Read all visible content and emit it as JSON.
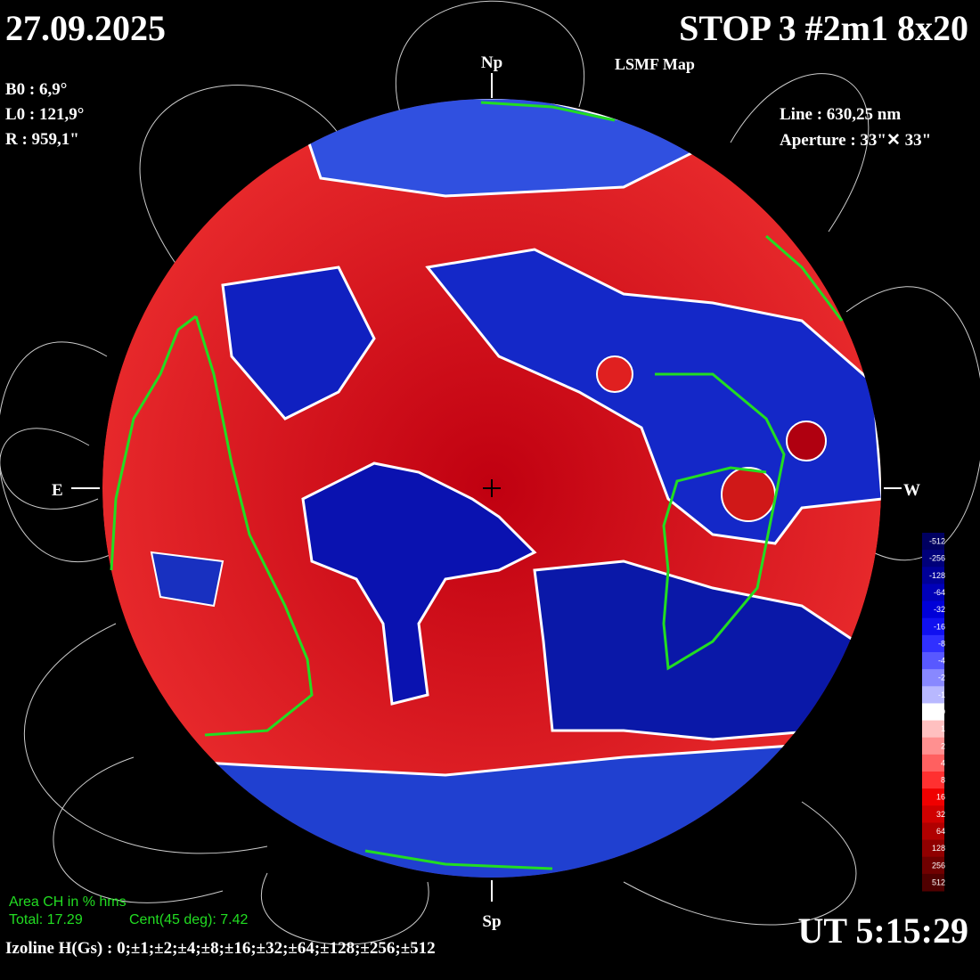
{
  "header": {
    "date": "27.09.2025",
    "station": "STOP 3 #2m1 8x20",
    "map_type": "LSMF  Map"
  },
  "parameters": {
    "b0": "B0 : 6,9°",
    "l0": "L0 : 121,9°",
    "r": "R  : 959,1\""
  },
  "instrument": {
    "line": "Line :  630,25 nm",
    "aperture": "Aperture : 33\"✕ 33\""
  },
  "disk_labels": {
    "north": "Np",
    "south": "Sp",
    "east": "E",
    "west": "W"
  },
  "colorbar": {
    "labels": [
      "-512",
      "-256",
      "-128",
      "-64",
      "-32",
      "-16",
      "-8",
      "-4",
      "-2",
      "-1",
      "0",
      "1",
      "2",
      "4",
      "8",
      "16",
      "32",
      "64",
      "128",
      "256",
      "512"
    ]
  },
  "coronal_holes": {
    "title": "Area CH in % hms",
    "total": "Total: 17.29",
    "central": "Cent(45 deg): 7.42"
  },
  "footer": {
    "time": "UT 5:15:29",
    "isolines": "Izoline H(Gs) : 0;±1;±2;±4;±8;±16;±32;±64;±128;±256;±512"
  }
}
